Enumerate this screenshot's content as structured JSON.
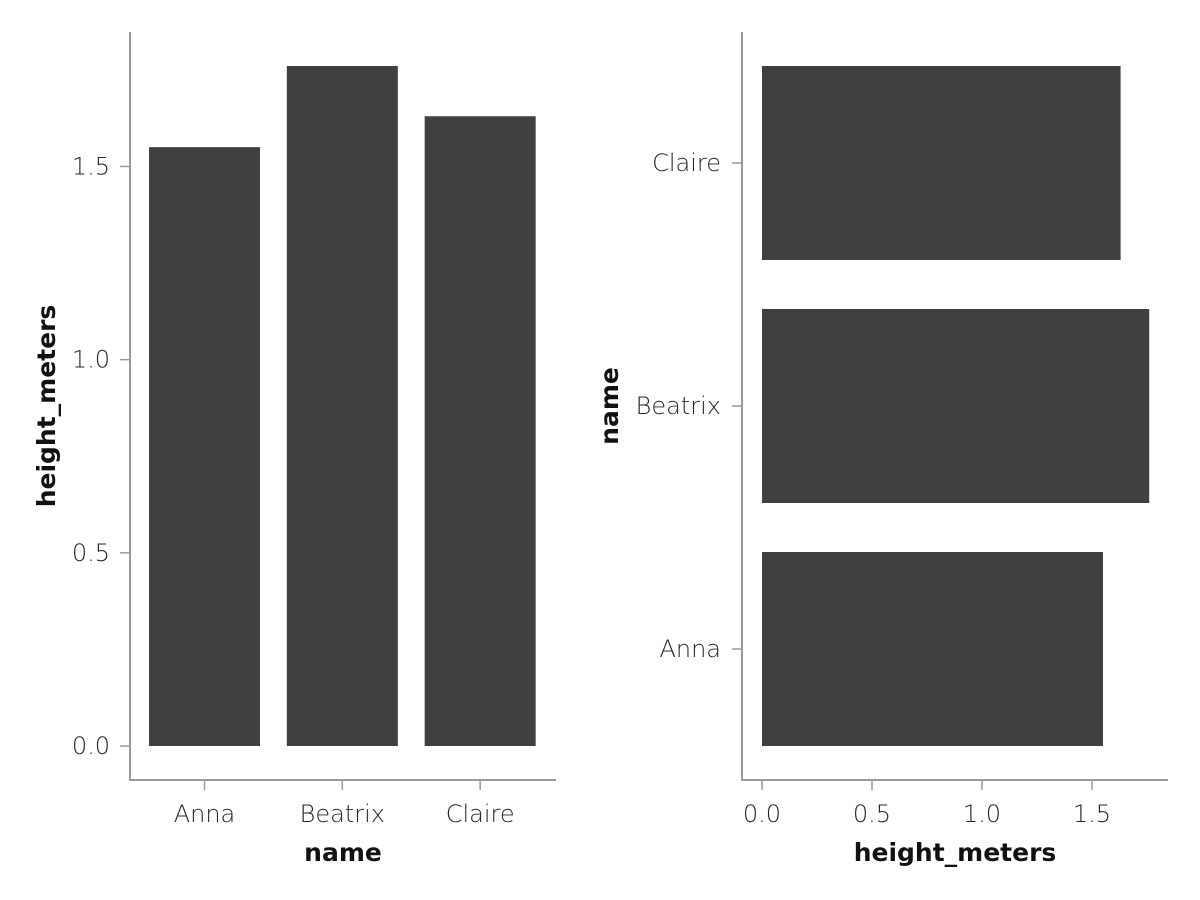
{
  "chart_data": [
    {
      "type": "bar",
      "orientation": "vertical",
      "categories": [
        "Anna",
        "Beatrix",
        "Claire"
      ],
      "values": [
        1.55,
        1.76,
        1.63
      ],
      "xlabel": "name",
      "ylabel": "height_meters",
      "ylim": [
        -0.09,
        1.76
      ],
      "yticks": [
        0.0,
        0.5,
        1.0,
        1.5
      ],
      "ytick_labels": [
        "0.0",
        "0.5",
        "1.0",
        "1.5"
      ],
      "grid": false,
      "bar_color": "#404040"
    },
    {
      "type": "bar",
      "orientation": "horizontal",
      "categories": [
        "Anna",
        "Beatrix",
        "Claire"
      ],
      "values": [
        1.55,
        1.76,
        1.63
      ],
      "xlabel": "height_meters",
      "ylabel": "name",
      "xlim": [
        -0.09,
        1.85
      ],
      "xticks": [
        0.0,
        0.5,
        1.0,
        1.5
      ],
      "xtick_labels": [
        "0.0",
        "0.5",
        "1.0",
        "1.5"
      ],
      "grid": false,
      "bar_color": "#404040"
    }
  ]
}
